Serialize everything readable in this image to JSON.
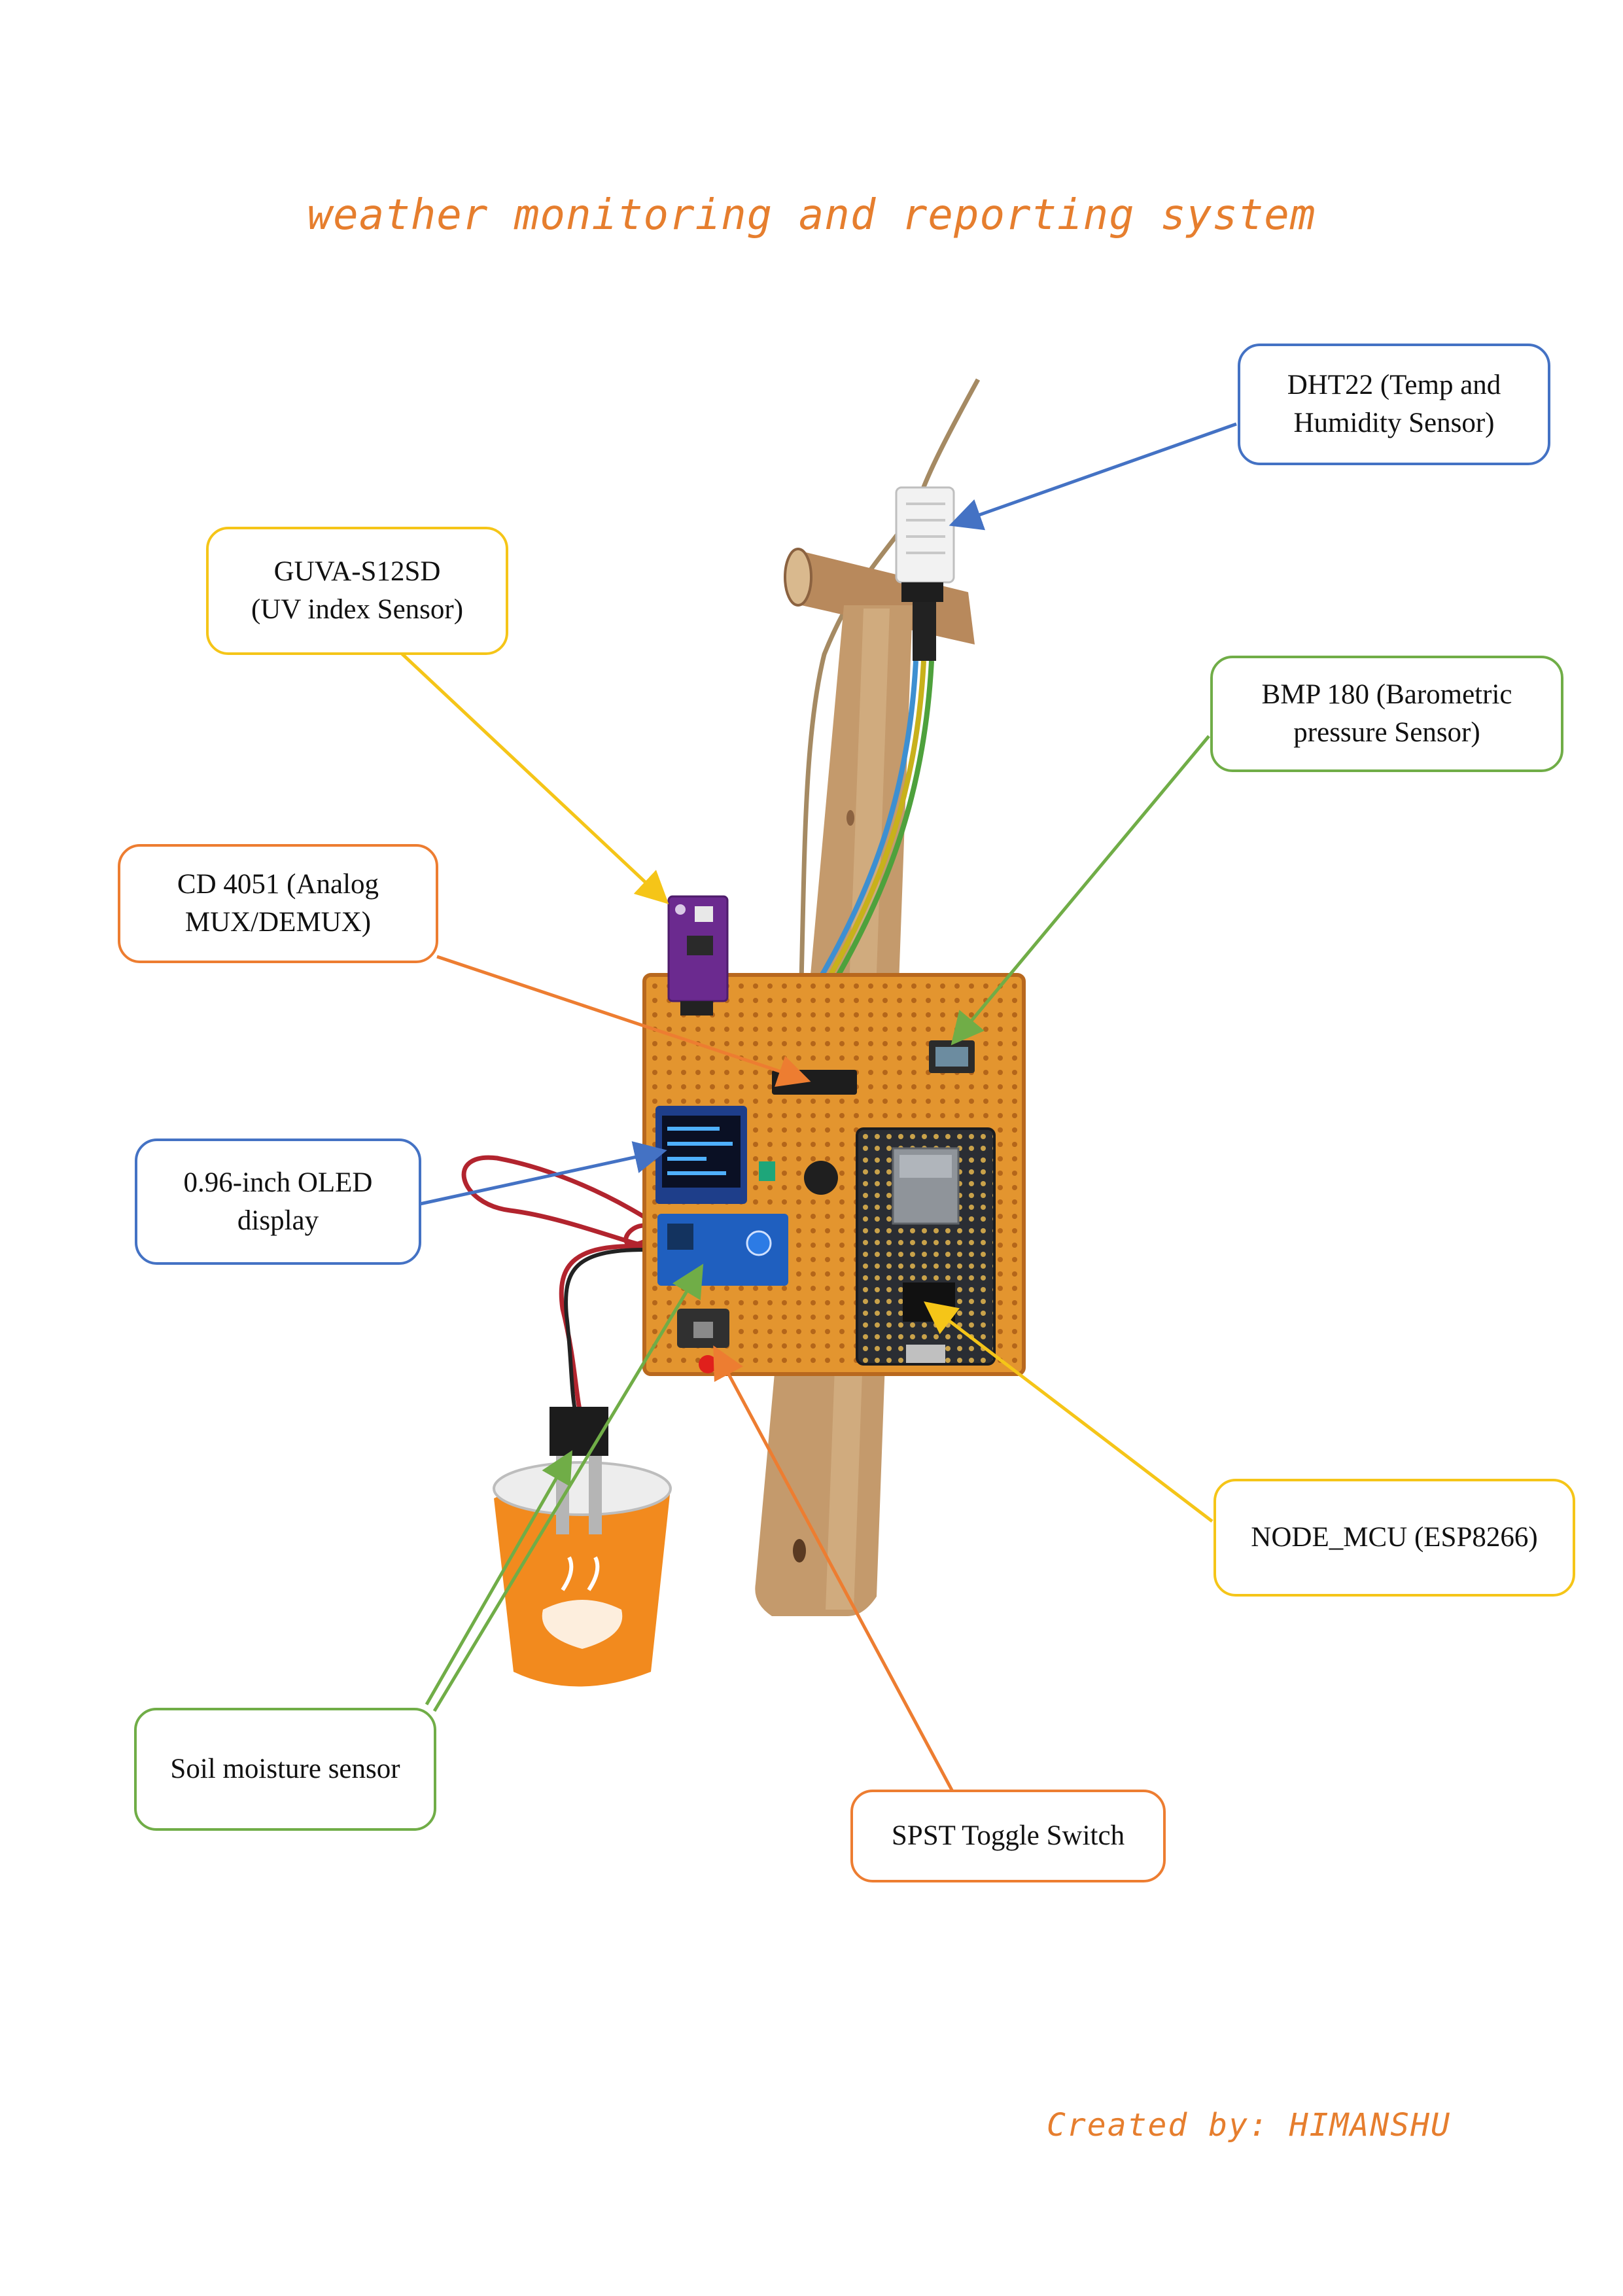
{
  "title": "weather monitoring and reporting system",
  "credit": "Created by: HIMANSHU",
  "colors": {
    "accent_text": "#e67e2e",
    "blue": "#4472c4",
    "yellow": "#f5c518",
    "green": "#70ad47",
    "orange": "#ed7d31"
  },
  "labels": {
    "dht22": "DHT22 (Temp and\nHumidity Sensor)",
    "guva": "GUVA-S12SD\n(UV index Sensor)",
    "bmp180": "BMP 180 (Barometric\npressure Sensor)",
    "cd4051": "CD 4051 (Analog\nMUX/DEMUX)",
    "oled": "0.96-inch OLED\ndisplay",
    "nodemcu": "NODE_MCU (ESP8266)",
    "soil": "Soil moisture sensor",
    "spst": "SPST Toggle Switch"
  }
}
